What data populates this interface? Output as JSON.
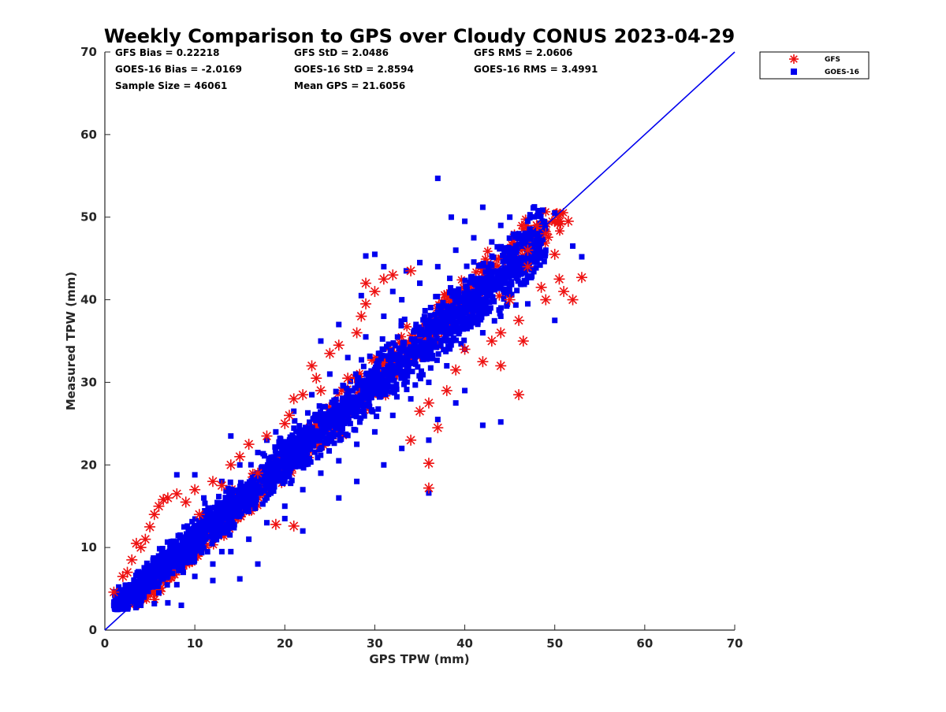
{
  "chart_data": {
    "type": "scatter",
    "title": "Weekly Comparison to GPS over Cloudy CONUS 2023-04-29",
    "xlabel": "GPS TPW (mm)",
    "ylabel": "Measured TPW (mm)",
    "xlim": [
      0,
      70
    ],
    "ylim": [
      0,
      70
    ],
    "xticks": [
      "0",
      "10",
      "20",
      "30",
      "40",
      "50",
      "60",
      "70"
    ],
    "yticks": [
      "0",
      "10",
      "20",
      "30",
      "40",
      "50",
      "60",
      "70"
    ],
    "grid": false,
    "legend_position": "top-right outside",
    "reference_line": {
      "x": [
        0,
        70
      ],
      "y": [
        0,
        70
      ],
      "color": "#0000ee"
    },
    "stats": [
      "GFS Bias = 0.22218",
      "GFS StD = 2.0486",
      "GFS RMS = 2.0606",
      "GOES-16 Bias = -2.0169",
      "GOES-16 StD = 2.8594",
      "GOES-16 RMS = 3.4991",
      "Sample Size = 46061",
      "Mean GPS = 21.6056"
    ],
    "series": [
      {
        "name": "GFS",
        "marker": "asterisk",
        "color": "#ee1111",
        "points": [
          [
            1.0,
            4.6
          ],
          [
            2.0,
            6.5
          ],
          [
            2.5,
            7.0
          ],
          [
            3.0,
            8.5
          ],
          [
            3.5,
            10.5
          ],
          [
            4.0,
            10.0
          ],
          [
            4.5,
            11.0
          ],
          [
            5.0,
            12.5
          ],
          [
            5.5,
            14.0
          ],
          [
            6.0,
            15.0
          ],
          [
            6.5,
            15.8
          ],
          [
            7.0,
            16.0
          ],
          [
            8.0,
            16.5
          ],
          [
            9.0,
            15.5
          ],
          [
            10.0,
            17.0
          ],
          [
            12.0,
            18.0
          ],
          [
            14.0,
            20.0
          ],
          [
            15.0,
            21.0
          ],
          [
            16.0,
            22.5
          ],
          [
            18.0,
            23.5
          ],
          [
            20.0,
            25.0
          ],
          [
            20.5,
            26.0
          ],
          [
            21.0,
            28.0
          ],
          [
            22.0,
            28.5
          ],
          [
            23.0,
            32.0
          ],
          [
            23.5,
            30.5
          ],
          [
            25.0,
            33.5
          ],
          [
            26.0,
            34.5
          ],
          [
            28.0,
            36.0
          ],
          [
            28.5,
            38.0
          ],
          [
            29.0,
            39.5
          ],
          [
            29.0,
            42.0
          ],
          [
            30.0,
            41.0
          ],
          [
            31.0,
            42.5
          ],
          [
            32.0,
            43.0
          ],
          [
            34.0,
            43.5
          ],
          [
            35.0,
            26.5
          ],
          [
            36.0,
            20.2
          ],
          [
            36.0,
            17.2
          ],
          [
            37.0,
            24.5
          ],
          [
            34.0,
            23.0
          ],
          [
            38.0,
            29.0
          ],
          [
            39.0,
            31.5
          ],
          [
            40.0,
            34.0
          ],
          [
            42.0,
            32.5
          ],
          [
            43.0,
            35.0
          ],
          [
            44.0,
            36.0
          ],
          [
            45.0,
            40.0
          ],
          [
            46.0,
            37.5
          ],
          [
            46.5,
            35.0
          ],
          [
            47.0,
            46.0
          ],
          [
            48.0,
            49.0
          ],
          [
            48.5,
            41.5
          ],
          [
            49.0,
            40.0
          ],
          [
            50.0,
            45.5
          ],
          [
            50.5,
            42.5
          ],
          [
            51.0,
            41.0
          ],
          [
            51.5,
            49.5
          ],
          [
            52.0,
            40.0
          ],
          [
            53.0,
            42.7
          ],
          [
            19.0,
            12.8
          ],
          [
            21.0,
            12.6
          ],
          [
            36.0,
            27.5
          ],
          [
            44.0,
            32.0
          ],
          [
            46.0,
            28.5
          ],
          [
            47.0,
            44.0
          ],
          [
            49.0,
            48.0
          ],
          [
            10.5,
            14.0
          ],
          [
            13.0,
            17.5
          ],
          [
            17.0,
            19.0
          ],
          [
            24.0,
            29.0
          ],
          [
            27.0,
            30.5
          ]
        ]
      },
      {
        "name": "GOES-16",
        "marker": "square",
        "color": "#0000ee",
        "points": [
          [
            37.0,
            54.7
          ],
          [
            42.0,
            51.2
          ],
          [
            38.5,
            50.0
          ],
          [
            50.0,
            50.5
          ],
          [
            52.0,
            46.5
          ],
          [
            53.0,
            45.2
          ],
          [
            50.0,
            37.5
          ],
          [
            47.0,
            39.5
          ],
          [
            44.0,
            25.2
          ],
          [
            42.0,
            24.8
          ],
          [
            36.0,
            16.6
          ],
          [
            37.0,
            25.5
          ],
          [
            39.0,
            27.5
          ],
          [
            40.0,
            29.0
          ],
          [
            8.5,
            3.0
          ],
          [
            7.0,
            3.3
          ],
          [
            5.5,
            3.2
          ],
          [
            4.0,
            3.0
          ],
          [
            1.0,
            3.0
          ],
          [
            2.0,
            3.7
          ],
          [
            15.0,
            6.2
          ],
          [
            12.0,
            6.0
          ],
          [
            17.0,
            8.0
          ],
          [
            13.0,
            9.5
          ],
          [
            22.0,
            12.0
          ],
          [
            20.0,
            13.5
          ],
          [
            26.0,
            16.0
          ],
          [
            28.0,
            18.0
          ],
          [
            31.0,
            20.0
          ],
          [
            33.0,
            22.0
          ],
          [
            36.0,
            23.0
          ],
          [
            8.0,
            18.8
          ],
          [
            10.0,
            18.8
          ],
          [
            14.0,
            23.5
          ],
          [
            18.0,
            23.0
          ],
          [
            24.0,
            35.0
          ],
          [
            26.0,
            37.0
          ],
          [
            30.0,
            45.5
          ],
          [
            32.0,
            41.0
          ],
          [
            35.0,
            44.5
          ],
          [
            41.0,
            47.5
          ],
          [
            45.0,
            50.0
          ],
          [
            48.0,
            47.0
          ],
          [
            46.0,
            45.0
          ],
          [
            43.0,
            43.0
          ],
          [
            40.0,
            40.5
          ],
          [
            38.0,
            38.0
          ],
          [
            36.0,
            36.0
          ],
          [
            34.0,
            34.0
          ],
          [
            32.0,
            32.0
          ],
          [
            30.0,
            29.0
          ],
          [
            28.0,
            27.0
          ],
          [
            26.0,
            25.0
          ],
          [
            24.0,
            22.0
          ],
          [
            22.0,
            20.0
          ],
          [
            20.0,
            18.0
          ],
          [
            18.0,
            16.0
          ],
          [
            16.0,
            14.5
          ],
          [
            14.0,
            12.5
          ],
          [
            12.0,
            11.0
          ],
          [
            10.0,
            9.5
          ],
          [
            8.0,
            8.0
          ],
          [
            6.0,
            6.5
          ],
          [
            4.0,
            5.5
          ],
          [
            3.0,
            4.5
          ],
          [
            5.0,
            6.0
          ],
          [
            7.0,
            8.0
          ],
          [
            9.0,
            10.0
          ],
          [
            11.0,
            12.5
          ],
          [
            13.0,
            14.0
          ],
          [
            15.0,
            16.0
          ],
          [
            17.0,
            18.5
          ],
          [
            19.0,
            20.5
          ],
          [
            21.0,
            22.5
          ],
          [
            23.0,
            24.0
          ],
          [
            25.0,
            26.5
          ],
          [
            27.0,
            28.5
          ],
          [
            29.0,
            30.0
          ],
          [
            31.0,
            31.5
          ],
          [
            33.0,
            33.0
          ],
          [
            35.0,
            35.0
          ],
          [
            37.0,
            37.0
          ],
          [
            39.0,
            39.0
          ],
          [
            41.0,
            41.0
          ],
          [
            43.0,
            41.5
          ],
          [
            45.0,
            43.0
          ],
          [
            47.0,
            45.0
          ],
          [
            49.0,
            46.0
          ],
          [
            44.0,
            38.0
          ],
          [
            42.0,
            36.0
          ],
          [
            40.0,
            34.0
          ],
          [
            38.0,
            32.0
          ],
          [
            36.0,
            30.0
          ],
          [
            34.0,
            28.0
          ],
          [
            32.0,
            26.0
          ],
          [
            30.0,
            24.0
          ],
          [
            28.0,
            22.5
          ],
          [
            26.0,
            20.5
          ],
          [
            24.0,
            19.0
          ],
          [
            22.0,
            17.0
          ],
          [
            20.0,
            15.0
          ],
          [
            18.0,
            13.0
          ],
          [
            16.0,
            11.0
          ],
          [
            14.0,
            9.5
          ],
          [
            12.0,
            8.0
          ],
          [
            10.0,
            6.5
          ],
          [
            8.0,
            5.5
          ],
          [
            6.0,
            4.5
          ],
          [
            11.0,
            16.0
          ],
          [
            13.0,
            18.0
          ],
          [
            15.0,
            20.0
          ],
          [
            17.0,
            21.5
          ],
          [
            19.0,
            24.0
          ],
          [
            21.0,
            26.5
          ],
          [
            23.0,
            28.5
          ],
          [
            25.0,
            31.0
          ],
          [
            27.0,
            33.0
          ],
          [
            29.0,
            35.5
          ],
          [
            31.0,
            38.0
          ],
          [
            33.0,
            40.0
          ],
          [
            35.0,
            42.0
          ],
          [
            37.0,
            44.0
          ],
          [
            39.0,
            46.0
          ],
          [
            43.0,
            47.0
          ],
          [
            46.0,
            48.0
          ],
          [
            28.5,
            40.5
          ],
          [
            33.5,
            43.5
          ],
          [
            40.0,
            49.5
          ],
          [
            44.0,
            49.0
          ],
          [
            47.0,
            49.5
          ],
          [
            29.0,
            45.3
          ],
          [
            31.0,
            44.0
          ]
        ]
      }
    ]
  }
}
